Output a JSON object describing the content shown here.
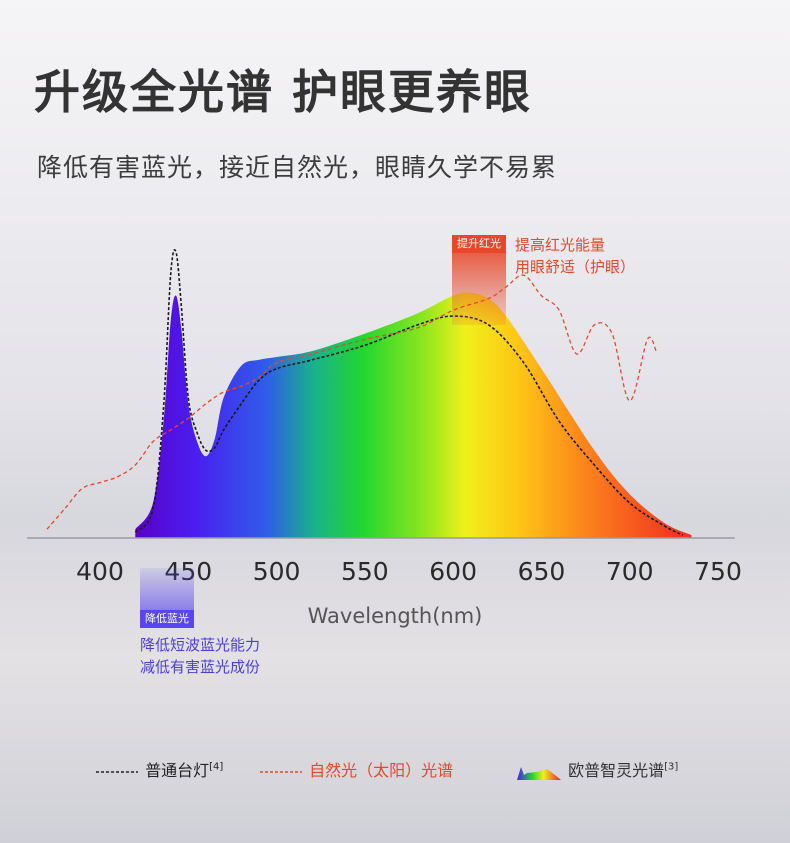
{
  "title": "升级全光谱 护眼更养眼",
  "subtitle": "降低有害蓝光，接近自然光，眼睛久学不易累",
  "red_callout": {
    "tag": "提升红光",
    "line1": "提高红光能量",
    "line2": "用眼舒适（护眼）",
    "color": "#e8472a"
  },
  "blue_callout": {
    "tag": "降低蓝光",
    "line1": "降低短波蓝光能力",
    "line2": "减低有害蓝光成份",
    "color": "#5a46f0"
  },
  "legend": {
    "item1": "普通台灯",
    "item1_ref": "[4]",
    "item2": "自然光（太阳）光谱",
    "item3": "欧普智灵光谱",
    "item3_ref": "[3]"
  },
  "chart_data": {
    "type": "area",
    "xlabel": "Wavelength(nm)",
    "ylabel": "",
    "xlim": [
      370,
      755
    ],
    "ylim": [
      0,
      1
    ],
    "xticks": [
      400,
      450,
      500,
      550,
      600,
      650,
      700,
      750
    ],
    "grid": false,
    "legend_position": "bottom",
    "series": [
      {
        "name": "欧普智灵光谱",
        "style": "filled-rainbow",
        "x": [
          420,
          430,
          436,
          440,
          443,
          446,
          450,
          455,
          460,
          465,
          470,
          480,
          490,
          500,
          520,
          550,
          580,
          600,
          610,
          620,
          630,
          650,
          680,
          700,
          720,
          735
        ],
        "y": [
          0.03,
          0.12,
          0.4,
          0.74,
          0.83,
          0.72,
          0.46,
          0.33,
          0.28,
          0.34,
          0.48,
          0.59,
          0.61,
          0.62,
          0.64,
          0.7,
          0.77,
          0.83,
          0.84,
          0.82,
          0.76,
          0.58,
          0.3,
          0.15,
          0.05,
          0.01
        ]
      },
      {
        "name": "普通台灯",
        "style": "black-dashed",
        "x": [
          420,
          430,
          436,
          440,
          443,
          446,
          450,
          455,
          460,
          465,
          470,
          480,
          490,
          500,
          520,
          550,
          580,
          600,
          620,
          640,
          660,
          680,
          700,
          720,
          730
        ],
        "y": [
          0.02,
          0.1,
          0.45,
          0.9,
          0.98,
          0.8,
          0.48,
          0.36,
          0.3,
          0.31,
          0.37,
          0.46,
          0.54,
          0.58,
          0.61,
          0.66,
          0.73,
          0.76,
          0.73,
          0.6,
          0.4,
          0.25,
          0.12,
          0.04,
          0.01
        ]
      },
      {
        "name": "自然光（太阳）光谱",
        "style": "red-dashed",
        "x": [
          370,
          380,
          390,
          400,
          410,
          420,
          430,
          440,
          450,
          460,
          470,
          480,
          490,
          500,
          520,
          550,
          580,
          600,
          620,
          630,
          640,
          650,
          660,
          670,
          680,
          690,
          700,
          710,
          715
        ],
        "y": [
          0.03,
          0.1,
          0.17,
          0.19,
          0.21,
          0.25,
          0.33,
          0.37,
          0.41,
          0.46,
          0.5,
          0.52,
          0.55,
          0.6,
          0.63,
          0.68,
          0.72,
          0.78,
          0.82,
          0.86,
          0.9,
          0.83,
          0.78,
          0.63,
          0.73,
          0.7,
          0.47,
          0.68,
          0.64
        ]
      }
    ]
  }
}
